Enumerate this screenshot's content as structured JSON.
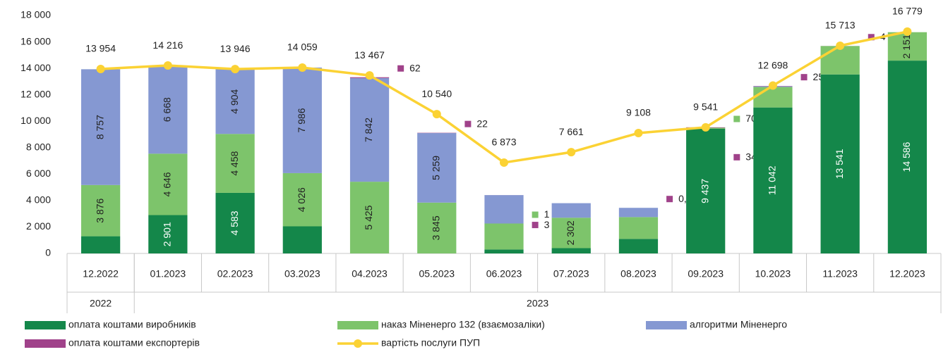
{
  "chart_data": {
    "type": "bar",
    "stacked": true,
    "categories": [
      "12.2022",
      "01.2023",
      "02.2023",
      "03.2023",
      "04.2023",
      "05.2023",
      "06.2023",
      "07.2023",
      "08.2023",
      "09.2023",
      "10.2023",
      "11.2023",
      "12.2023"
    ],
    "groups": [
      {
        "label": "2022",
        "span": 1
      },
      {
        "label": "2023",
        "span": 12
      }
    ],
    "ylim": [
      0,
      18000
    ],
    "yticks": [
      0,
      {
        "value": 2000,
        "label": "2 000"
      },
      {
        "value": 4000,
        "label": "4 000"
      },
      {
        "value": 6000,
        "label": "6 000"
      },
      {
        "value": 8000,
        "label": "8 000"
      },
      {
        "value": 10000,
        "label": "10 000"
      },
      {
        "value": 12000,
        "label": "12 000"
      },
      {
        "value": 14000,
        "label": "14 000"
      },
      {
        "value": 16000,
        "label": "16 000"
      },
      {
        "value": 18000,
        "label": "18 000"
      }
    ],
    "grid": false,
    "legend": "bottom",
    "series": [
      {
        "name": "оплата коштами виробників",
        "color": "#14874a",
        "values": [
          1300,
          2901,
          4583,
          2050,
          0,
          0,
          300,
          400,
          1100,
          9437,
          11042,
          13541,
          14586
        ],
        "value_labels": [
          null,
          "2 901",
          "4 583",
          null,
          null,
          null,
          null,
          null,
          null,
          "9 437",
          "11 042",
          "13 541",
          "14 586"
        ]
      },
      {
        "name": "наказ Міненерго 132 (взаємозаліки)",
        "color": "#7dc46b",
        "values": [
          3876,
          4646,
          4458,
          4026,
          5425,
          3845,
          1963,
          2302,
          1650,
          70,
          1550,
          2150,
          2151
        ],
        "value_labels": [
          "3 876",
          "4 646",
          "4 458",
          "4 026",
          "5 425",
          "3 845",
          "1 963",
          "2 302",
          null,
          "70",
          null,
          null,
          "2 151"
        ]
      },
      {
        "name": "алгоритми Міненерго",
        "color": "#8598d2",
        "values": [
          8757,
          6668,
          4904,
          7986,
          7842,
          5259,
          2150,
          1100,
          700,
          0,
          50,
          0,
          0
        ],
        "value_labels": [
          "8 757",
          "6 668",
          "4 904",
          "7 986",
          "7 842",
          "5 259",
          null,
          null,
          null,
          null,
          null,
          null,
          null
        ]
      },
      {
        "name": "оплата коштами експортерів",
        "color": "#a0428a",
        "values": [
          0,
          0,
          0,
          0,
          62,
          22,
          3,
          0,
          0.1,
          34,
          25,
          4,
          0
        ],
        "value_labels": [
          null,
          null,
          null,
          null,
          "62",
          "22",
          "3",
          null,
          "0,1",
          "34",
          "25",
          "4",
          null
        ]
      },
      {
        "name": "вартість послуги ПУП",
        "color": "#fbd234",
        "type": "line",
        "values": [
          13954,
          14216,
          13946,
          14059,
          13467,
          10540,
          6873,
          7661,
          9108,
          9541,
          12698,
          15713,
          16779
        ],
        "value_labels": [
          "13 954",
          "14 216",
          "13 946",
          "14 059",
          "13 467",
          "10 540",
          "6 873",
          "7 661",
          "9 108",
          "9 541",
          "12 698",
          "15 713",
          "16 779"
        ]
      }
    ]
  }
}
